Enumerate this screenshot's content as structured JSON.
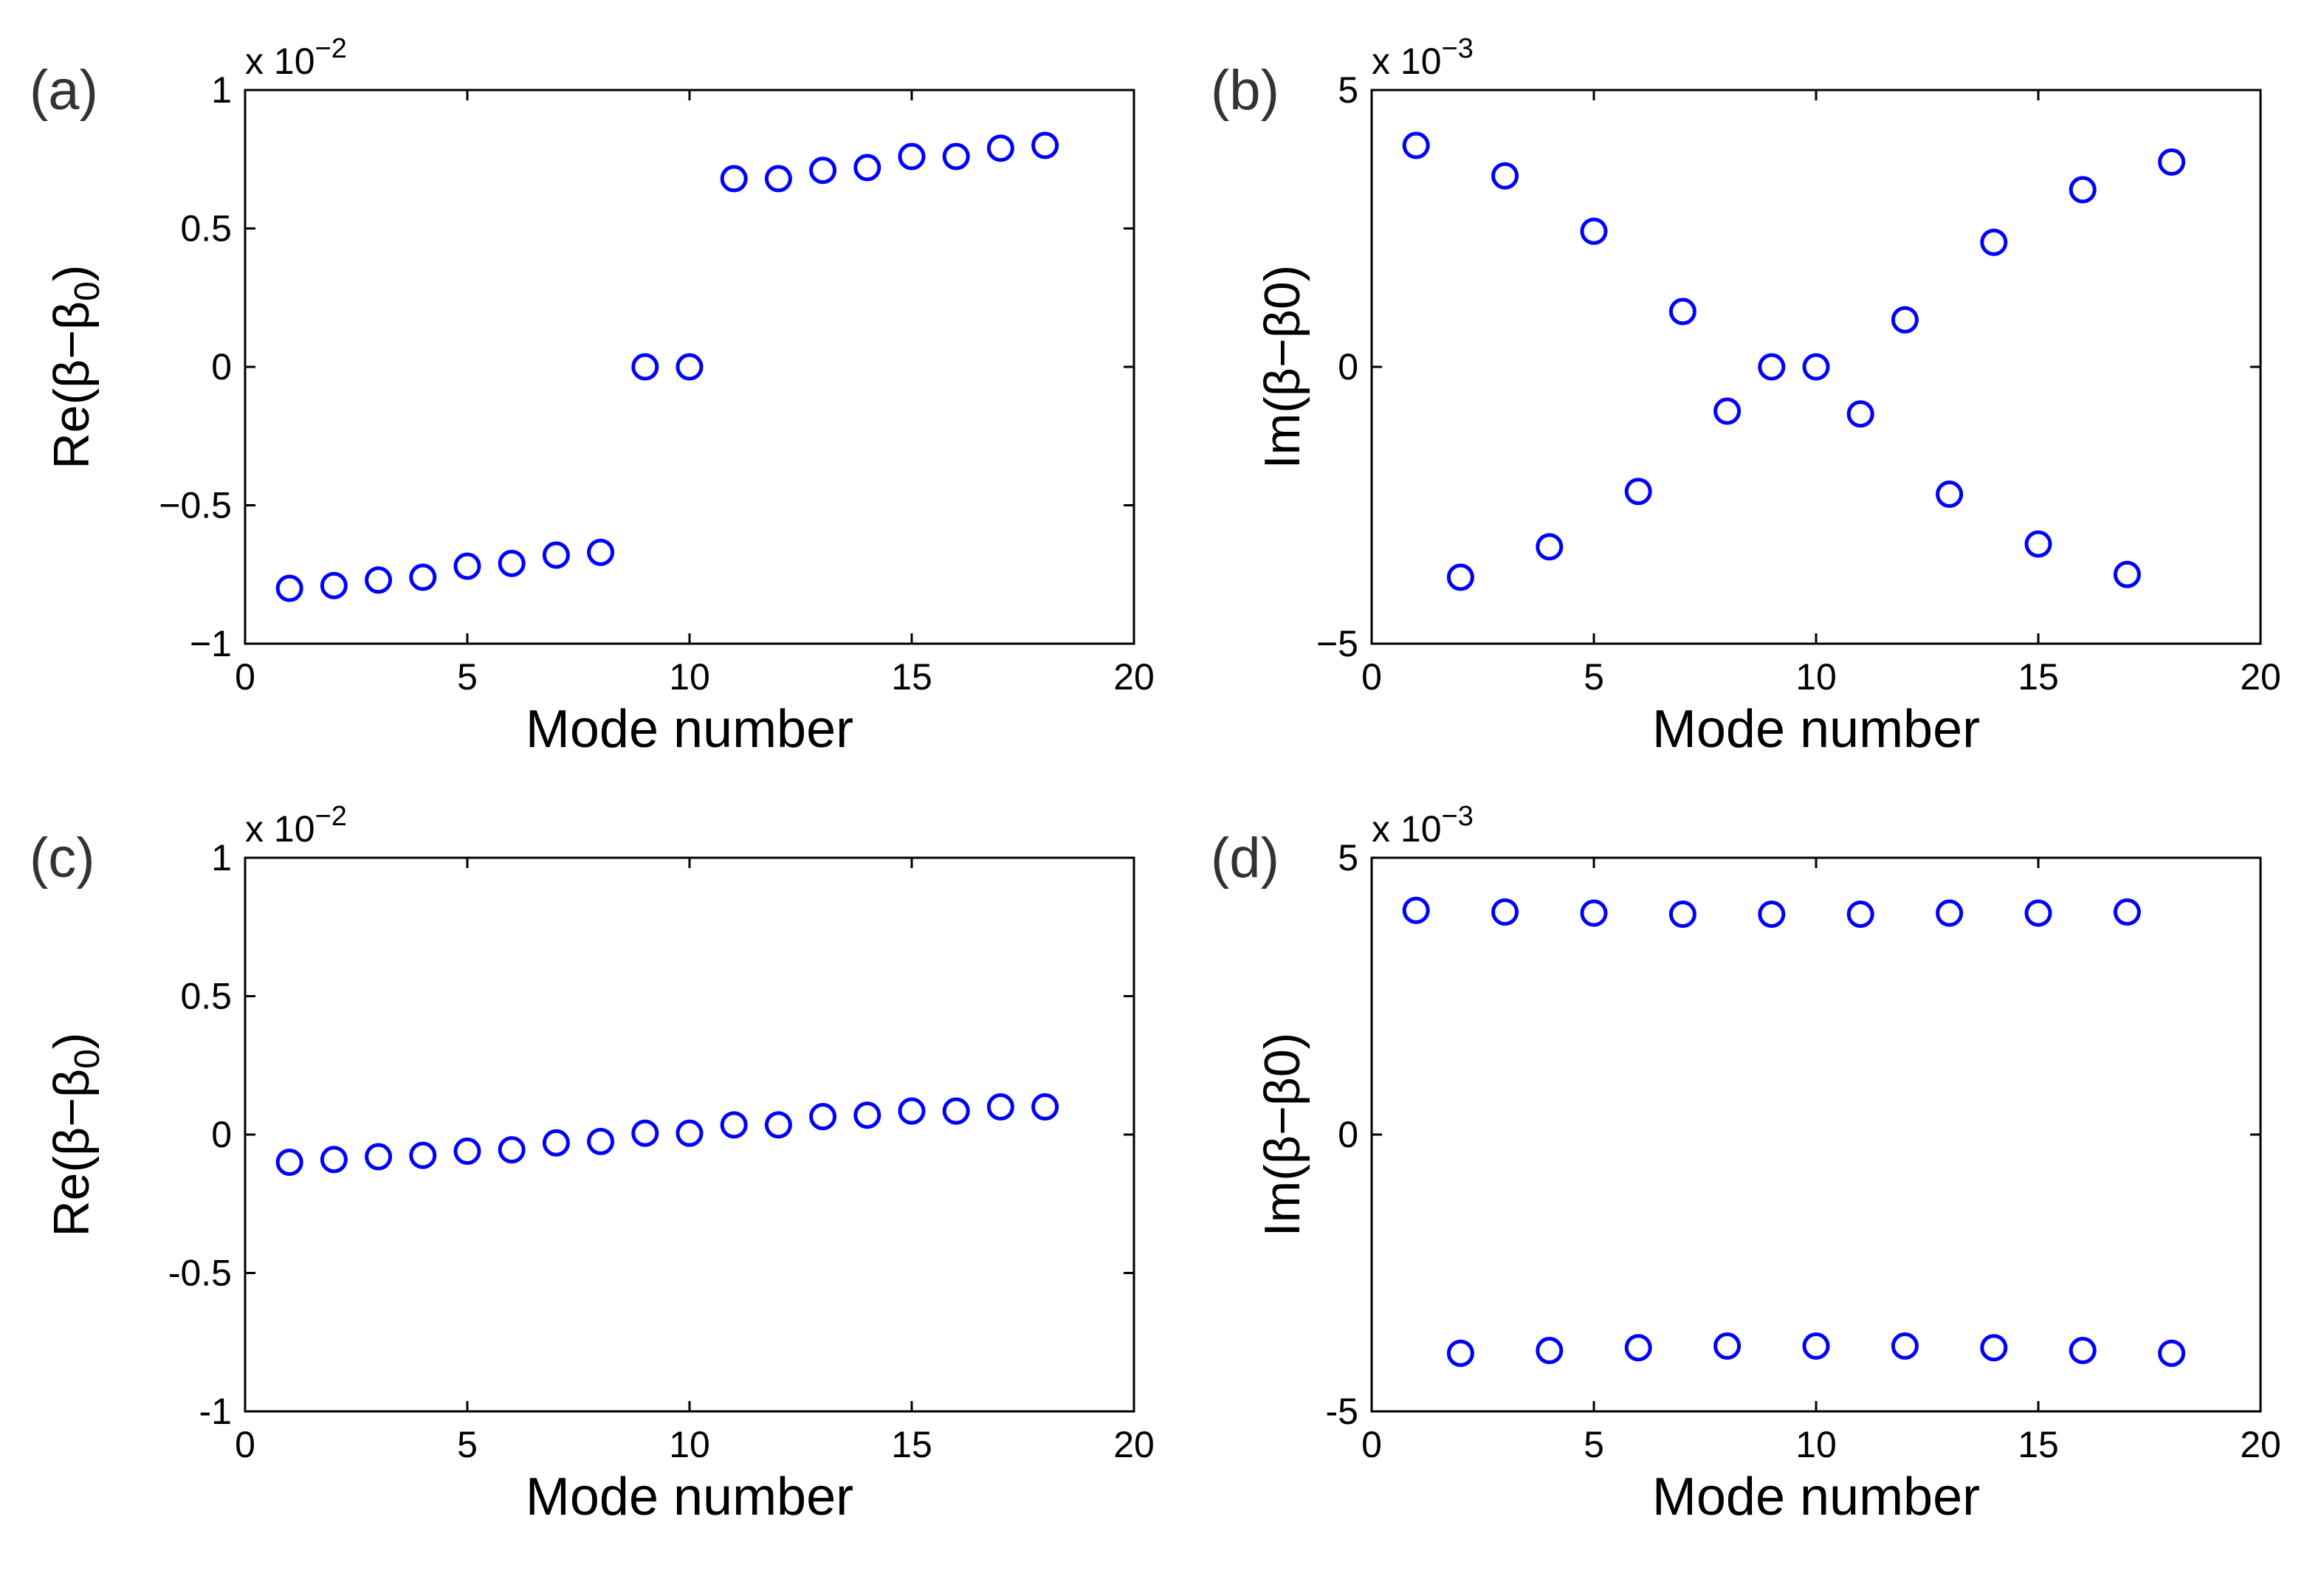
{
  "colors": {
    "marker": "#0000ff",
    "axis": "#000000",
    "panel_label": "#333333"
  },
  "chart_data": [
    {
      "id": "a",
      "type": "scatter",
      "panel_label": "(a)",
      "xlabel": "Mode number",
      "ylabel": "Re(β−β0)",
      "ylabel_parts": {
        "main": "Re(β−β",
        "sub": "0",
        "tail": ")"
      },
      "multiplier": {
        "base": "x 10",
        "exp": "−2"
      },
      "xlim": [
        0,
        20
      ],
      "ylim": [
        -1,
        1
      ],
      "xticks": [
        0,
        5,
        10,
        15,
        20
      ],
      "xtick_labels": [
        "0",
        "5",
        "10",
        "15",
        "20"
      ],
      "yticks": [
        -1,
        -0.5,
        0,
        0.5,
        1
      ],
      "ytick_labels": [
        "−1",
        "−0.5",
        "0",
        "0.5",
        "1"
      ],
      "grid": false,
      "x": [
        1,
        2,
        3,
        4,
        5,
        6,
        7,
        8,
        9,
        10,
        11,
        12,
        13,
        14,
        15,
        16,
        17,
        18
      ],
      "y": [
        -0.8,
        -0.79,
        -0.77,
        -0.76,
        -0.72,
        -0.71,
        -0.68,
        -0.67,
        0.0,
        0.0,
        0.68,
        0.68,
        0.71,
        0.72,
        0.76,
        0.76,
        0.79,
        0.8
      ]
    },
    {
      "id": "b",
      "type": "scatter",
      "panel_label": "(b)",
      "xlabel": "Mode number",
      "ylabel": "Im(β−β0)",
      "ylabel_parts": {
        "main": "Im(β−β0)",
        "sub": "",
        "tail": ""
      },
      "multiplier": {
        "base": "x 10",
        "exp": "−3"
      },
      "xlim": [
        0,
        20
      ],
      "ylim": [
        -5,
        5
      ],
      "xticks": [
        0,
        5,
        10,
        15,
        20
      ],
      "xtick_labels": [
        "0",
        "5",
        "10",
        "15",
        "20"
      ],
      "yticks": [
        -5,
        0,
        5
      ],
      "ytick_labels": [
        "−5",
        "0",
        "5"
      ],
      "grid": false,
      "x": [
        1,
        2,
        3,
        4,
        5,
        6,
        7,
        8,
        9,
        10,
        11,
        12,
        13,
        14,
        15,
        16,
        17,
        18
      ],
      "y": [
        4.0,
        -3.8,
        3.45,
        -3.25,
        2.45,
        -2.25,
        1.0,
        -0.8,
        0.0,
        0.0,
        -0.85,
        0.85,
        -2.3,
        2.25,
        -3.2,
        3.2,
        -3.75,
        3.7
      ]
    },
    {
      "id": "c",
      "type": "scatter",
      "panel_label": "(c)",
      "xlabel": "Mode number",
      "ylabel": "Re(β−β0)",
      "ylabel_parts": {
        "main": "Re(β−β",
        "sub": "0",
        "tail": ")"
      },
      "multiplier": {
        "base": "x 10",
        "exp": "−2"
      },
      "xlim": [
        0,
        20
      ],
      "ylim": [
        -1,
        1
      ],
      "xticks": [
        0,
        5,
        10,
        15,
        20
      ],
      "xtick_labels": [
        "0",
        "5",
        "10",
        "15",
        "20"
      ],
      "yticks": [
        -1,
        -0.5,
        0,
        0.5,
        1
      ],
      "ytick_labels": [
        "-1",
        "-0.5",
        "0",
        "0.5",
        "1"
      ],
      "grid": false,
      "x": [
        1,
        2,
        3,
        4,
        5,
        6,
        7,
        8,
        9,
        10,
        11,
        12,
        13,
        14,
        15,
        16,
        17,
        18
      ],
      "y": [
        -0.1,
        -0.09,
        -0.08,
        -0.075,
        -0.06,
        -0.055,
        -0.03,
        -0.025,
        0.005,
        0.005,
        0.035,
        0.035,
        0.065,
        0.07,
        0.085,
        0.085,
        0.1,
        0.1
      ]
    },
    {
      "id": "d",
      "type": "scatter",
      "panel_label": "(d)",
      "xlabel": "Mode number",
      "ylabel": "Im(β−β0)",
      "ylabel_parts": {
        "main": "Im(β−β0)",
        "sub": "",
        "tail": ""
      },
      "multiplier": {
        "base": "x 10",
        "exp": "−3"
      },
      "xlim": [
        0,
        20
      ],
      "ylim": [
        -5,
        5
      ],
      "xticks": [
        0,
        5,
        10,
        15,
        20
      ],
      "xtick_labels": [
        "0",
        "5",
        "10",
        "15",
        "20"
      ],
      "yticks": [
        -5,
        0,
        5
      ],
      "ytick_labels": [
        "-5",
        "0",
        "5"
      ],
      "grid": false,
      "x": [
        1,
        2,
        3,
        4,
        5,
        6,
        7,
        8,
        9,
        10,
        11,
        12,
        13,
        14,
        15,
        16,
        17,
        18
      ],
      "y": [
        4.05,
        -3.95,
        4.02,
        -3.9,
        4.0,
        -3.85,
        3.98,
        -3.82,
        3.98,
        -3.82,
        3.98,
        -3.82,
        4.0,
        -3.85,
        4.0,
        -3.9,
        4.02,
        -3.95
      ]
    }
  ]
}
